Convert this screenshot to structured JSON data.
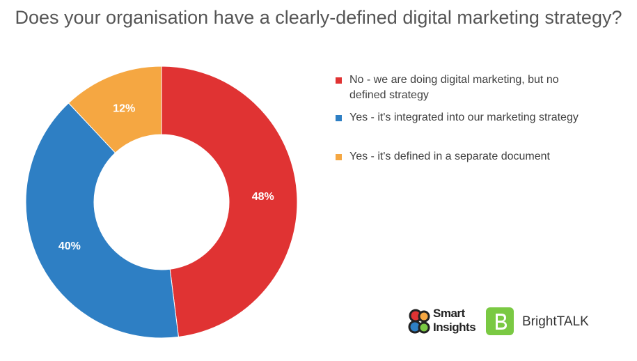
{
  "title": "Does your organisation have a clearly-defined digital marketing strategy?",
  "chart_data": {
    "type": "pie",
    "title": "Does your organisation have a clearly-defined digital marketing strategy?",
    "donut": true,
    "legend_position": "right",
    "slices": [
      {
        "label": "No - we are doing digital marketing, but no defined strategy",
        "value": 48,
        "display": "48%",
        "color": "#e03333"
      },
      {
        "label": "Yes - it's integrated into our marketing strategy",
        "value": 40,
        "display": "40%",
        "color": "#2e7fc4"
      },
      {
        "label": "Yes - it's defined in a separate document",
        "value": 12,
        "display": "12%",
        "color": "#f5a742"
      }
    ]
  },
  "legend": {
    "items": [
      {
        "label_line1": "No - we are doing digital marketing, but no",
        "label_line2": "defined strategy"
      },
      {
        "label_line1": "Yes - it's integrated into our marketing strategy"
      },
      {
        "label_line1": "Yes - it's defined in a separate document"
      }
    ]
  },
  "logos": {
    "smart_insights": {
      "line1": "Smart",
      "line2": "Insights"
    },
    "brighttalk": {
      "text": "BrightTALK",
      "mark_color": "#7ac943"
    }
  }
}
